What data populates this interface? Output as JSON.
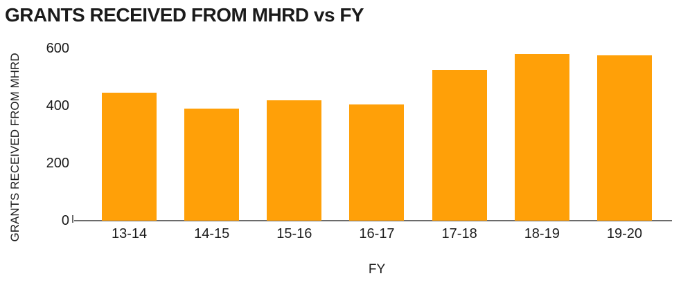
{
  "title": "GRANTS RECEIVED FROM MHRD vs FY",
  "chart_data": {
    "type": "bar",
    "title": "GRANTS RECEIVED FROM MHRD vs FY",
    "xlabel": "FY",
    "ylabel": "GRANTS RECEIVED FROM MHRD",
    "categories": [
      "13-14",
      "14-15",
      "15-16",
      "16-17",
      "17-18",
      "18-19",
      "19-20"
    ],
    "values": [
      445,
      390,
      420,
      405,
      525,
      580,
      575
    ],
    "yticks": [
      0,
      200,
      400,
      600
    ],
    "ylim": [
      0,
      600
    ],
    "grid": false,
    "legend": false,
    "bar_color": "#FFA008",
    "axis_line_color": "#6b6b6b",
    "text_color": "#1b1b1b"
  }
}
